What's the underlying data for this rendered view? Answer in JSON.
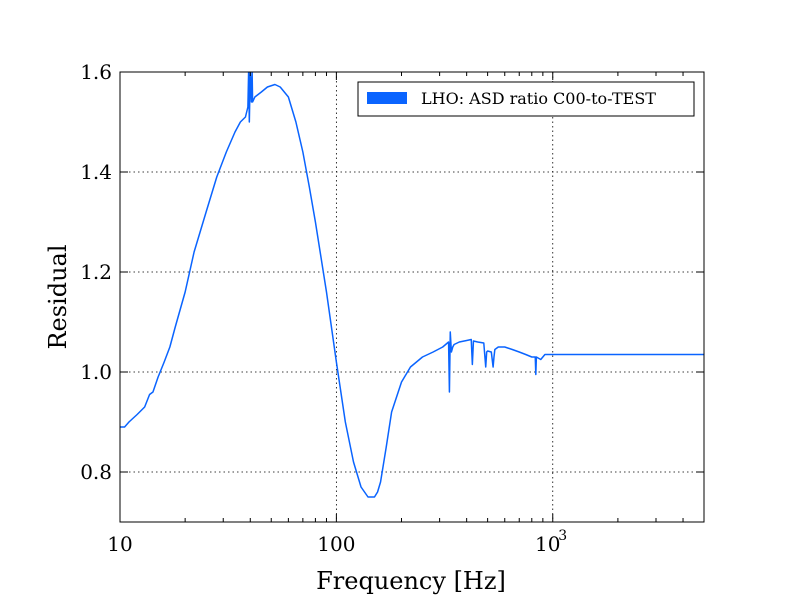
{
  "chart_data": {
    "type": "line",
    "xlabel": "Frequency [Hz]",
    "ylabel": "Residual",
    "xscale": "log",
    "xlim": [
      10,
      5000
    ],
    "ylim": [
      0.7,
      1.6
    ],
    "x_ticks": [
      {
        "value": 10,
        "label": "10"
      },
      {
        "value": 100,
        "label": "100"
      },
      {
        "value": 1000,
        "label": "10",
        "exp": "3"
      }
    ],
    "y_ticks": [
      {
        "value": 0.8,
        "label": "0.8"
      },
      {
        "value": 1.0,
        "label": "1.0"
      },
      {
        "value": 1.2,
        "label": "1.2"
      },
      {
        "value": 1.4,
        "label": "1.4"
      },
      {
        "value": 1.6,
        "label": "1.6"
      }
    ],
    "grid": true,
    "legend": {
      "position": "top-right",
      "entries": [
        "LHO: ASD ratio C00-to-TEST"
      ]
    },
    "series": [
      {
        "name": "LHO: ASD ratio C00-to-TEST",
        "color": "#0a64ff",
        "x": [
          10,
          10.5,
          11,
          12,
          13,
          13.7,
          14.2,
          15,
          16,
          17,
          18,
          20,
          22,
          25,
          28,
          31,
          34,
          36,
          38,
          39,
          39.3,
          39.6,
          40,
          40.5,
          40.8,
          41,
          42,
          45,
          48,
          52,
          55,
          60,
          65,
          70,
          75,
          80,
          90,
          100,
          110,
          120,
          130,
          140,
          150,
          155,
          160,
          170,
          180,
          200,
          220,
          250,
          280,
          310,
          330,
          333,
          336,
          340,
          345,
          350,
          370,
          400,
          420,
          425,
          430,
          450,
          480,
          490,
          495,
          500,
          520,
          530,
          535,
          540,
          560,
          600,
          650,
          700,
          750,
          800,
          830,
          835,
          840,
          880,
          920,
          960,
          1000,
          1200,
          1500,
          2000,
          3000,
          4000,
          5000
        ],
        "y": [
          0.89,
          0.89,
          0.9,
          0.915,
          0.93,
          0.955,
          0.96,
          0.99,
          1.02,
          1.05,
          1.09,
          1.16,
          1.24,
          1.32,
          1.39,
          1.44,
          1.48,
          1.5,
          1.51,
          1.53,
          1.6,
          1.5,
          1.6,
          1.54,
          1.6,
          1.54,
          1.55,
          1.56,
          1.57,
          1.575,
          1.57,
          1.55,
          1.5,
          1.44,
          1.37,
          1.3,
          1.16,
          1.02,
          0.9,
          0.82,
          0.77,
          0.75,
          0.75,
          0.76,
          0.78,
          0.85,
          0.92,
          0.98,
          1.01,
          1.03,
          1.04,
          1.05,
          1.06,
          0.96,
          1.08,
          1.04,
          1.05,
          1.055,
          1.06,
          1.063,
          1.065,
          1.015,
          1.062,
          1.06,
          1.058,
          1.01,
          1.04,
          1.042,
          1.04,
          1.01,
          1.03,
          1.045,
          1.05,
          1.05,
          1.045,
          1.04,
          1.035,
          1.03,
          1.03,
          0.995,
          1.03,
          1.025,
          1.035,
          1.035,
          1.035,
          1.035,
          1.035,
          1.035,
          1.035,
          1.035,
          1.035
        ]
      }
    ]
  }
}
